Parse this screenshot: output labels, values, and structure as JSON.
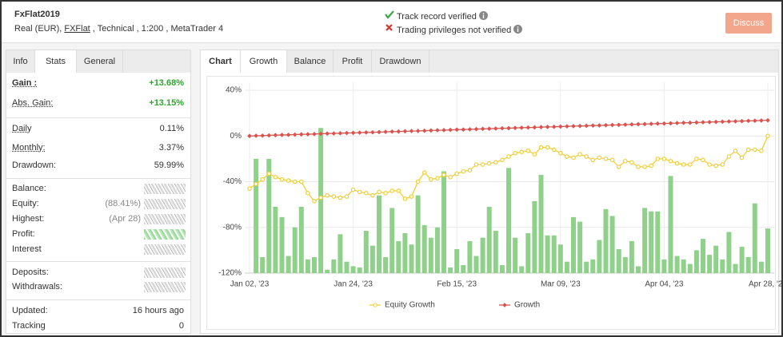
{
  "header": {
    "title": "FxFlat2019",
    "details": [
      "Real (EUR), ",
      "FXFlat",
      " , Technical , 1:200 , MetaTrader 4"
    ],
    "verified": "Track record verified",
    "not_verified": "Trading privileges not verified",
    "button": "Discuss"
  },
  "left_tabs": [
    "Info",
    "Stats",
    "General"
  ],
  "stats": [
    {
      "label": "Gain :",
      "value": "+13.68%"
    },
    {
      "label": "Abs. Gain:",
      "value": "+13.15%"
    },
    {
      "label": "Daily",
      "value": "0.11%"
    },
    {
      "label": "Monthly:",
      "value": "3.37%"
    },
    {
      "label": "Drawdown:",
      "value": "59.99%"
    },
    {
      "label": "Balance:"
    },
    {
      "label": "Equity:",
      "note": "(88.41%)"
    },
    {
      "label": "Highest:",
      "note": "(Apr 28)"
    },
    {
      "label": "Profit:"
    },
    {
      "label": "Interest"
    },
    {
      "label": "Deposits:"
    },
    {
      "label": "Withdrawals:"
    },
    {
      "label": "Updated:",
      "value": "16 hours ago"
    },
    {
      "label": "Tracking",
      "value": "0"
    }
  ],
  "chart_tabs": [
    "Chart",
    "Growth",
    "Balance",
    "Profit",
    "Drawdown"
  ],
  "chart_data": {
    "type": "line",
    "categories": [
      "Jan 02, '23",
      null,
      null,
      null,
      null,
      null,
      null,
      null,
      null,
      null,
      null,
      null,
      null,
      null,
      null,
      null,
      "Jan 24, '23",
      null,
      null,
      null,
      null,
      null,
      null,
      null,
      null,
      null,
      null,
      null,
      null,
      null,
      null,
      null,
      "Feb 15, '23",
      null,
      null,
      null,
      null,
      null,
      null,
      null,
      null,
      null,
      null,
      null,
      null,
      null,
      null,
      null,
      "Mar 09, '23",
      null,
      null,
      null,
      null,
      null,
      null,
      null,
      null,
      null,
      null,
      null,
      null,
      null,
      null,
      null,
      "Apr 04, '23",
      null,
      null,
      null,
      null,
      null,
      null,
      null,
      null,
      null,
      null,
      null,
      null,
      null,
      null,
      null,
      "Apr 28, '23"
    ],
    "series": [
      {
        "type": "bar",
        "color": "#8fd18a",
        "values": [
          null,
          -20,
          -106,
          -20,
          -62,
          -71,
          -105,
          -80,
          -62,
          -108,
          -106,
          7,
          -117,
          -108,
          -86,
          -110,
          -114,
          -115,
          -83,
          -96,
          -52,
          -106,
          -63,
          -92,
          -85,
          -95,
          -52,
          -78,
          -89,
          -80,
          -31,
          -115,
          -99,
          -113,
          -92,
          -105,
          -89,
          -62,
          -83,
          -113,
          -28,
          -89,
          -114,
          -85,
          -57,
          -34,
          -87,
          -87,
          -95,
          -110,
          -71,
          -75,
          -110,
          -108,
          -91,
          -64,
          -70,
          -99,
          -106,
          -92,
          -114,
          -63,
          -66,
          -66,
          -108,
          -35,
          -105,
          -108,
          -112,
          -100,
          -90,
          -104,
          -96,
          -108,
          -84,
          -112,
          -97,
          -106,
          -59,
          -110,
          -81
        ]
      },
      {
        "name": "Equity Growth",
        "type": "line",
        "marker": "circle",
        "color": "#f0cf3a",
        "values": [
          -46,
          -42,
          -38,
          -33,
          -36,
          -38,
          -39,
          -40,
          -40,
          -50,
          -57,
          -54,
          -52,
          -53,
          -54,
          -53,
          -47,
          -49,
          -50,
          -52,
          -49,
          -50,
          -48,
          -48,
          -55,
          -53,
          -40,
          -32,
          -38,
          -37,
          -34,
          -36,
          -33,
          -31,
          -30,
          -25,
          -25,
          -24,
          -23,
          -21,
          -18,
          -15,
          -14,
          -13,
          -16,
          -10,
          -10,
          -12,
          -15,
          -18,
          -19,
          -16,
          -18,
          -21,
          -19,
          -20,
          -21,
          -27,
          -22,
          -23,
          -27,
          -27,
          -26,
          -20,
          -20,
          -22,
          -24,
          -25,
          -25,
          -20,
          -21,
          -25,
          -26,
          -25,
          -18,
          -13,
          -19,
          -12,
          -12,
          -13,
          0
        ]
      },
      {
        "name": "Growth",
        "type": "line",
        "marker": "diamond",
        "color": "#d9534f",
        "values": [
          0.0,
          0.2,
          0.3,
          0.5,
          0.7,
          0.9,
          1.0,
          1.2,
          1.4,
          1.5,
          1.7,
          1.9,
          2.1,
          2.2,
          2.4,
          2.6,
          2.7,
          2.9,
          3.1,
          3.2,
          3.4,
          3.6,
          3.8,
          3.9,
          4.1,
          4.3,
          4.4,
          4.6,
          4.8,
          5.0,
          5.1,
          5.3,
          5.5,
          5.6,
          5.8,
          6.0,
          6.2,
          6.3,
          6.5,
          6.7,
          6.8,
          7.0,
          7.2,
          7.4,
          7.5,
          7.7,
          7.9,
          8.0,
          8.2,
          8.4,
          8.6,
          8.7,
          8.9,
          9.1,
          9.2,
          9.4,
          9.6,
          9.7,
          9.9,
          10.1,
          10.3,
          10.4,
          10.6,
          10.8,
          10.9,
          11.1,
          11.3,
          11.5,
          11.6,
          11.8,
          12.0,
          12.1,
          12.3,
          12.5,
          12.7,
          12.8,
          13.0,
          13.2,
          13.3,
          13.5,
          13.7
        ]
      }
    ],
    "ylim": [
      -120,
      40
    ],
    "yticks": [
      {
        "value": 40,
        "label": "40%"
      },
      {
        "value": 0,
        "label": "0%"
      },
      {
        "value": -40,
        "label": "-40%"
      },
      {
        "value": -80,
        "label": "-80%"
      },
      {
        "value": -120,
        "label": "-120%"
      }
    ],
    "grid": true,
    "legend": "bottom"
  }
}
